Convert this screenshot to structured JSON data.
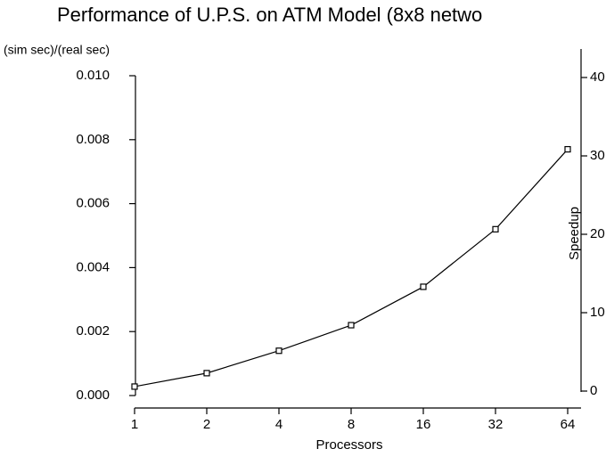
{
  "chart_data": {
    "type": "line",
    "title": "Performance of U.P.S. on ATM Model (8x8 netwo",
    "y_label": "(sim sec)/(real sec)",
    "y2_label": "Speedup",
    "x_label": "Processors",
    "categories": [
      "1",
      "2",
      "4",
      "8",
      "16",
      "32",
      "64"
    ],
    "values": [
      0.00028,
      0.0007,
      0.0014,
      0.0022,
      0.0034,
      0.0052,
      0.0077
    ],
    "color": "#000000",
    "ylim": [
      0,
      0.01
    ],
    "yticks": [
      {
        "value": 0,
        "label": "0.000"
      },
      {
        "value": 0.002,
        "label": "0.002"
      },
      {
        "value": 0.004,
        "label": "0.004"
      },
      {
        "value": 0.006,
        "label": "0.006"
      },
      {
        "value": 0.008,
        "label": "0.008"
      },
      {
        "value": 0.01,
        "label": "0.010"
      }
    ],
    "y2lim": [
      0,
      40
    ],
    "y2ticks": [
      0,
      10,
      20,
      30,
      40
    ],
    "grid": false
  }
}
